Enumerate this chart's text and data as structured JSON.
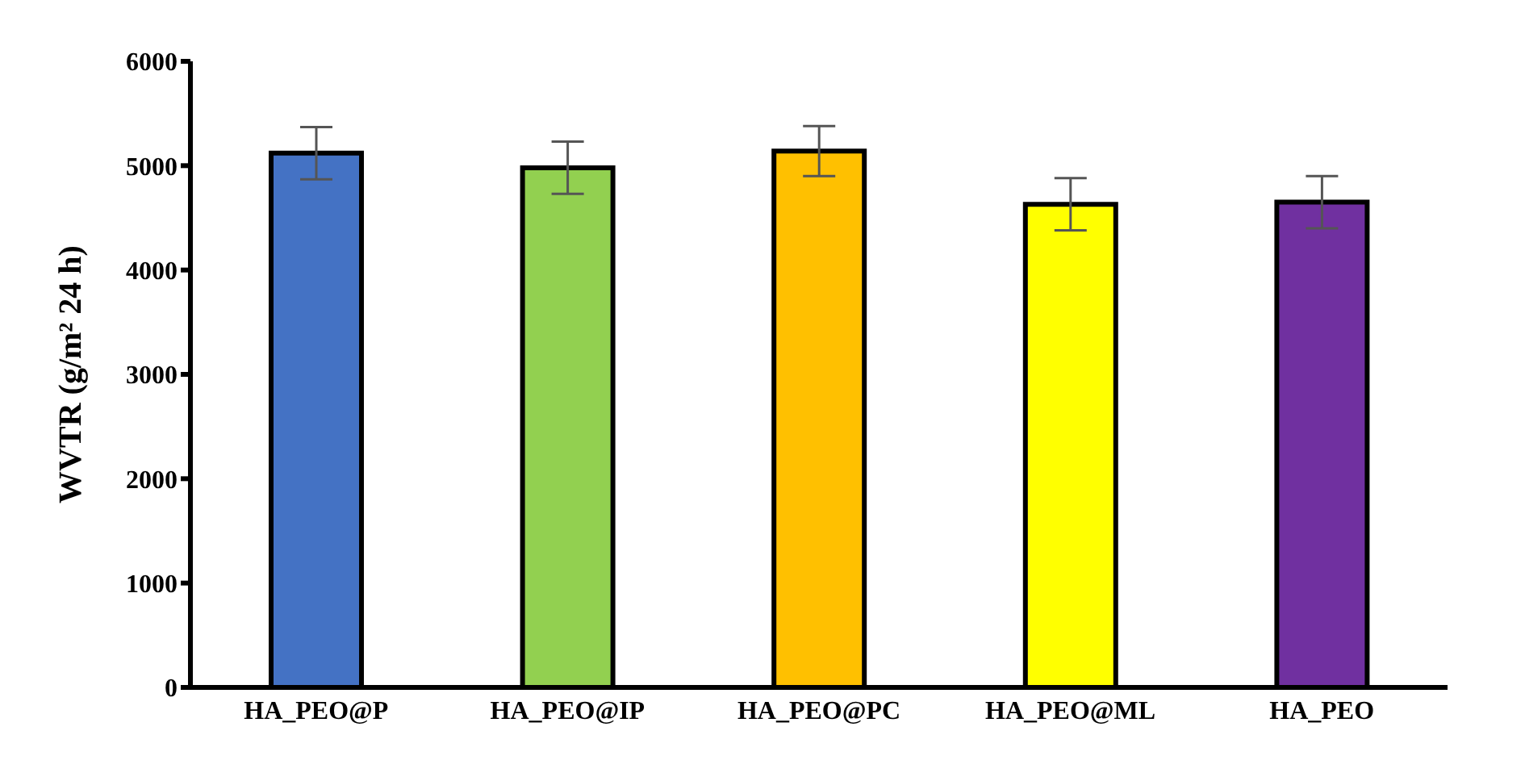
{
  "chart_data": {
    "type": "bar",
    "ylabel": "WVTR (g/m² 24 h)",
    "categories": [
      "HA_PEO@P",
      "HA_PEO@IP",
      "HA_PEO@PC",
      "HA_PEO@ML",
      "HA_PEO"
    ],
    "values": [
      5120,
      4980,
      5140,
      4630,
      4650
    ],
    "colors": [
      "#4472c4",
      "#92d050",
      "#ffc000",
      "#ffff00",
      "#7030a0"
    ],
    "errors": [
      250,
      250,
      240,
      250,
      250
    ],
    "ylim": [
      0,
      6000
    ],
    "yticks": [
      0,
      1000,
      2000,
      3000,
      4000,
      5000,
      6000
    ],
    "grid": false,
    "legend": false
  }
}
